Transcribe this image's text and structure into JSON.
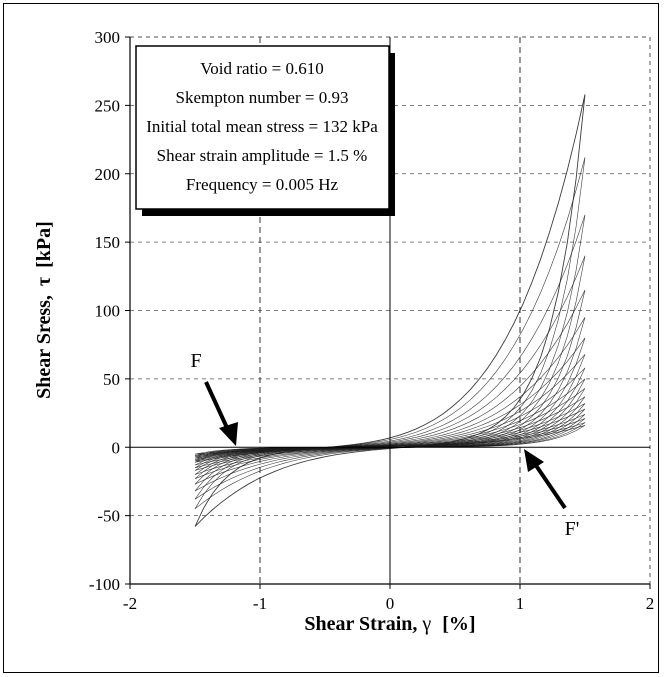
{
  "chart_data": {
    "type": "line",
    "title": "",
    "xlabel": "Shear Strain,",
    "xlabel_symbol": "γ",
    "xlabel_unit": "[%]",
    "ylabel": "Shear Sress,",
    "ylabel_symbol": "τ",
    "ylabel_unit": "[kPa]",
    "xlim": [
      -2,
      2
    ],
    "ylim": [
      -100,
      300
    ],
    "xticks": [
      "-2",
      "-1",
      "0",
      "1",
      "2"
    ],
    "yticks": [
      "-100",
      "-50",
      "0",
      "50",
      "100",
      "150",
      "200",
      "250",
      "300"
    ],
    "grid": true,
    "info_box": [
      "Void ratio = 0.610",
      "Skempton number = 0.93",
      "Initial total mean stress = 132 kPa",
      "Shear strain amplitude = 1.5 %",
      "Frequency = 0.005 Hz"
    ],
    "annotations": [
      {
        "label": "F",
        "points_to": [
          -1.2,
          2
        ]
      },
      {
        "label": "F'",
        "points_to": [
          1.05,
          0
        ]
      }
    ],
    "series": [
      {
        "peak": 258,
        "trough": -58
      },
      {
        "peak": 212,
        "trough": -45
      },
      {
        "peak": 170,
        "trough": -38
      },
      {
        "peak": 140,
        "trough": -32
      },
      {
        "peak": 115,
        "trough": -27
      },
      {
        "peak": 95,
        "trough": -23
      },
      {
        "peak": 80,
        "trough": -20
      },
      {
        "peak": 68,
        "trough": -17
      },
      {
        "peak": 58,
        "trough": -15
      },
      {
        "peak": 50,
        "trough": -13
      },
      {
        "peak": 43,
        "trough": -11
      },
      {
        "peak": 37,
        "trough": -10
      },
      {
        "peak": 32,
        "trough": -9
      },
      {
        "peak": 28,
        "trough": -8
      },
      {
        "peak": 24,
        "trough": -7
      },
      {
        "peak": 21,
        "trough": -6
      },
      {
        "peak": 18,
        "trough": -6
      },
      {
        "peak": 16,
        "trough": -5
      }
    ]
  }
}
